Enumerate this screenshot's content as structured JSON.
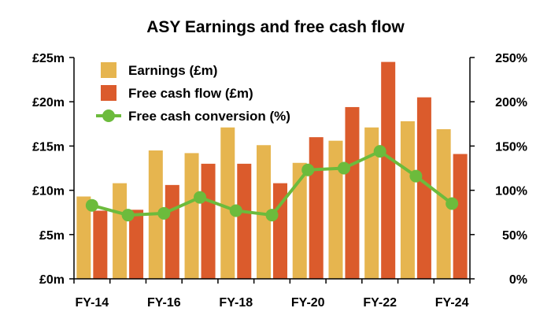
{
  "chart_data": {
    "type": "bar",
    "title": "ASY Earnings and free cash flow",
    "x_tick_labels": [
      "FY-14",
      "FY-16",
      "FY-18",
      "FY-20",
      "FY-22",
      "FY-24"
    ],
    "categories": [
      "FY-14",
      "FY-15",
      "FY-16",
      "FY-17",
      "FY-18",
      "FY-19",
      "FY-20",
      "FY-21",
      "FY-22",
      "FY-23",
      "FY-24"
    ],
    "y_left": {
      "min": 0,
      "max": 25,
      "ticks": [
        0,
        5,
        10,
        15,
        20,
        25
      ],
      "tick_labels": [
        "£0m",
        "£5m",
        "£10m",
        "£15m",
        "£20m",
        "£25m"
      ]
    },
    "y_right": {
      "min": 0,
      "max": 250,
      "ticks": [
        0,
        50,
        100,
        150,
        200,
        250
      ],
      "tick_labels": [
        "0%",
        "50%",
        "100%",
        "150%",
        "200%",
        "250%"
      ]
    },
    "series": [
      {
        "name": "Earnings (£m)",
        "type": "bar",
        "axis": "left",
        "color": "#E6B54F",
        "values": [
          9.3,
          10.8,
          14.5,
          14.2,
          17.1,
          15.1,
          13.1,
          15.6,
          17.1,
          17.8,
          16.9
        ]
      },
      {
        "name": "Free cash flow (£m)",
        "type": "bar",
        "axis": "left",
        "color": "#DB5B2C",
        "values": [
          7.7,
          7.8,
          10.6,
          13.0,
          13.0,
          10.8,
          16.0,
          19.4,
          24.5,
          20.5,
          14.1
        ]
      },
      {
        "name": "Free cash conversion (%)",
        "type": "line",
        "axis": "right",
        "color": "#6CBB3C",
        "values": [
          83,
          72,
          74,
          92,
          77,
          72,
          123,
          125,
          144,
          116,
          85
        ]
      }
    ],
    "legend_position": "top-left",
    "grid": false
  }
}
